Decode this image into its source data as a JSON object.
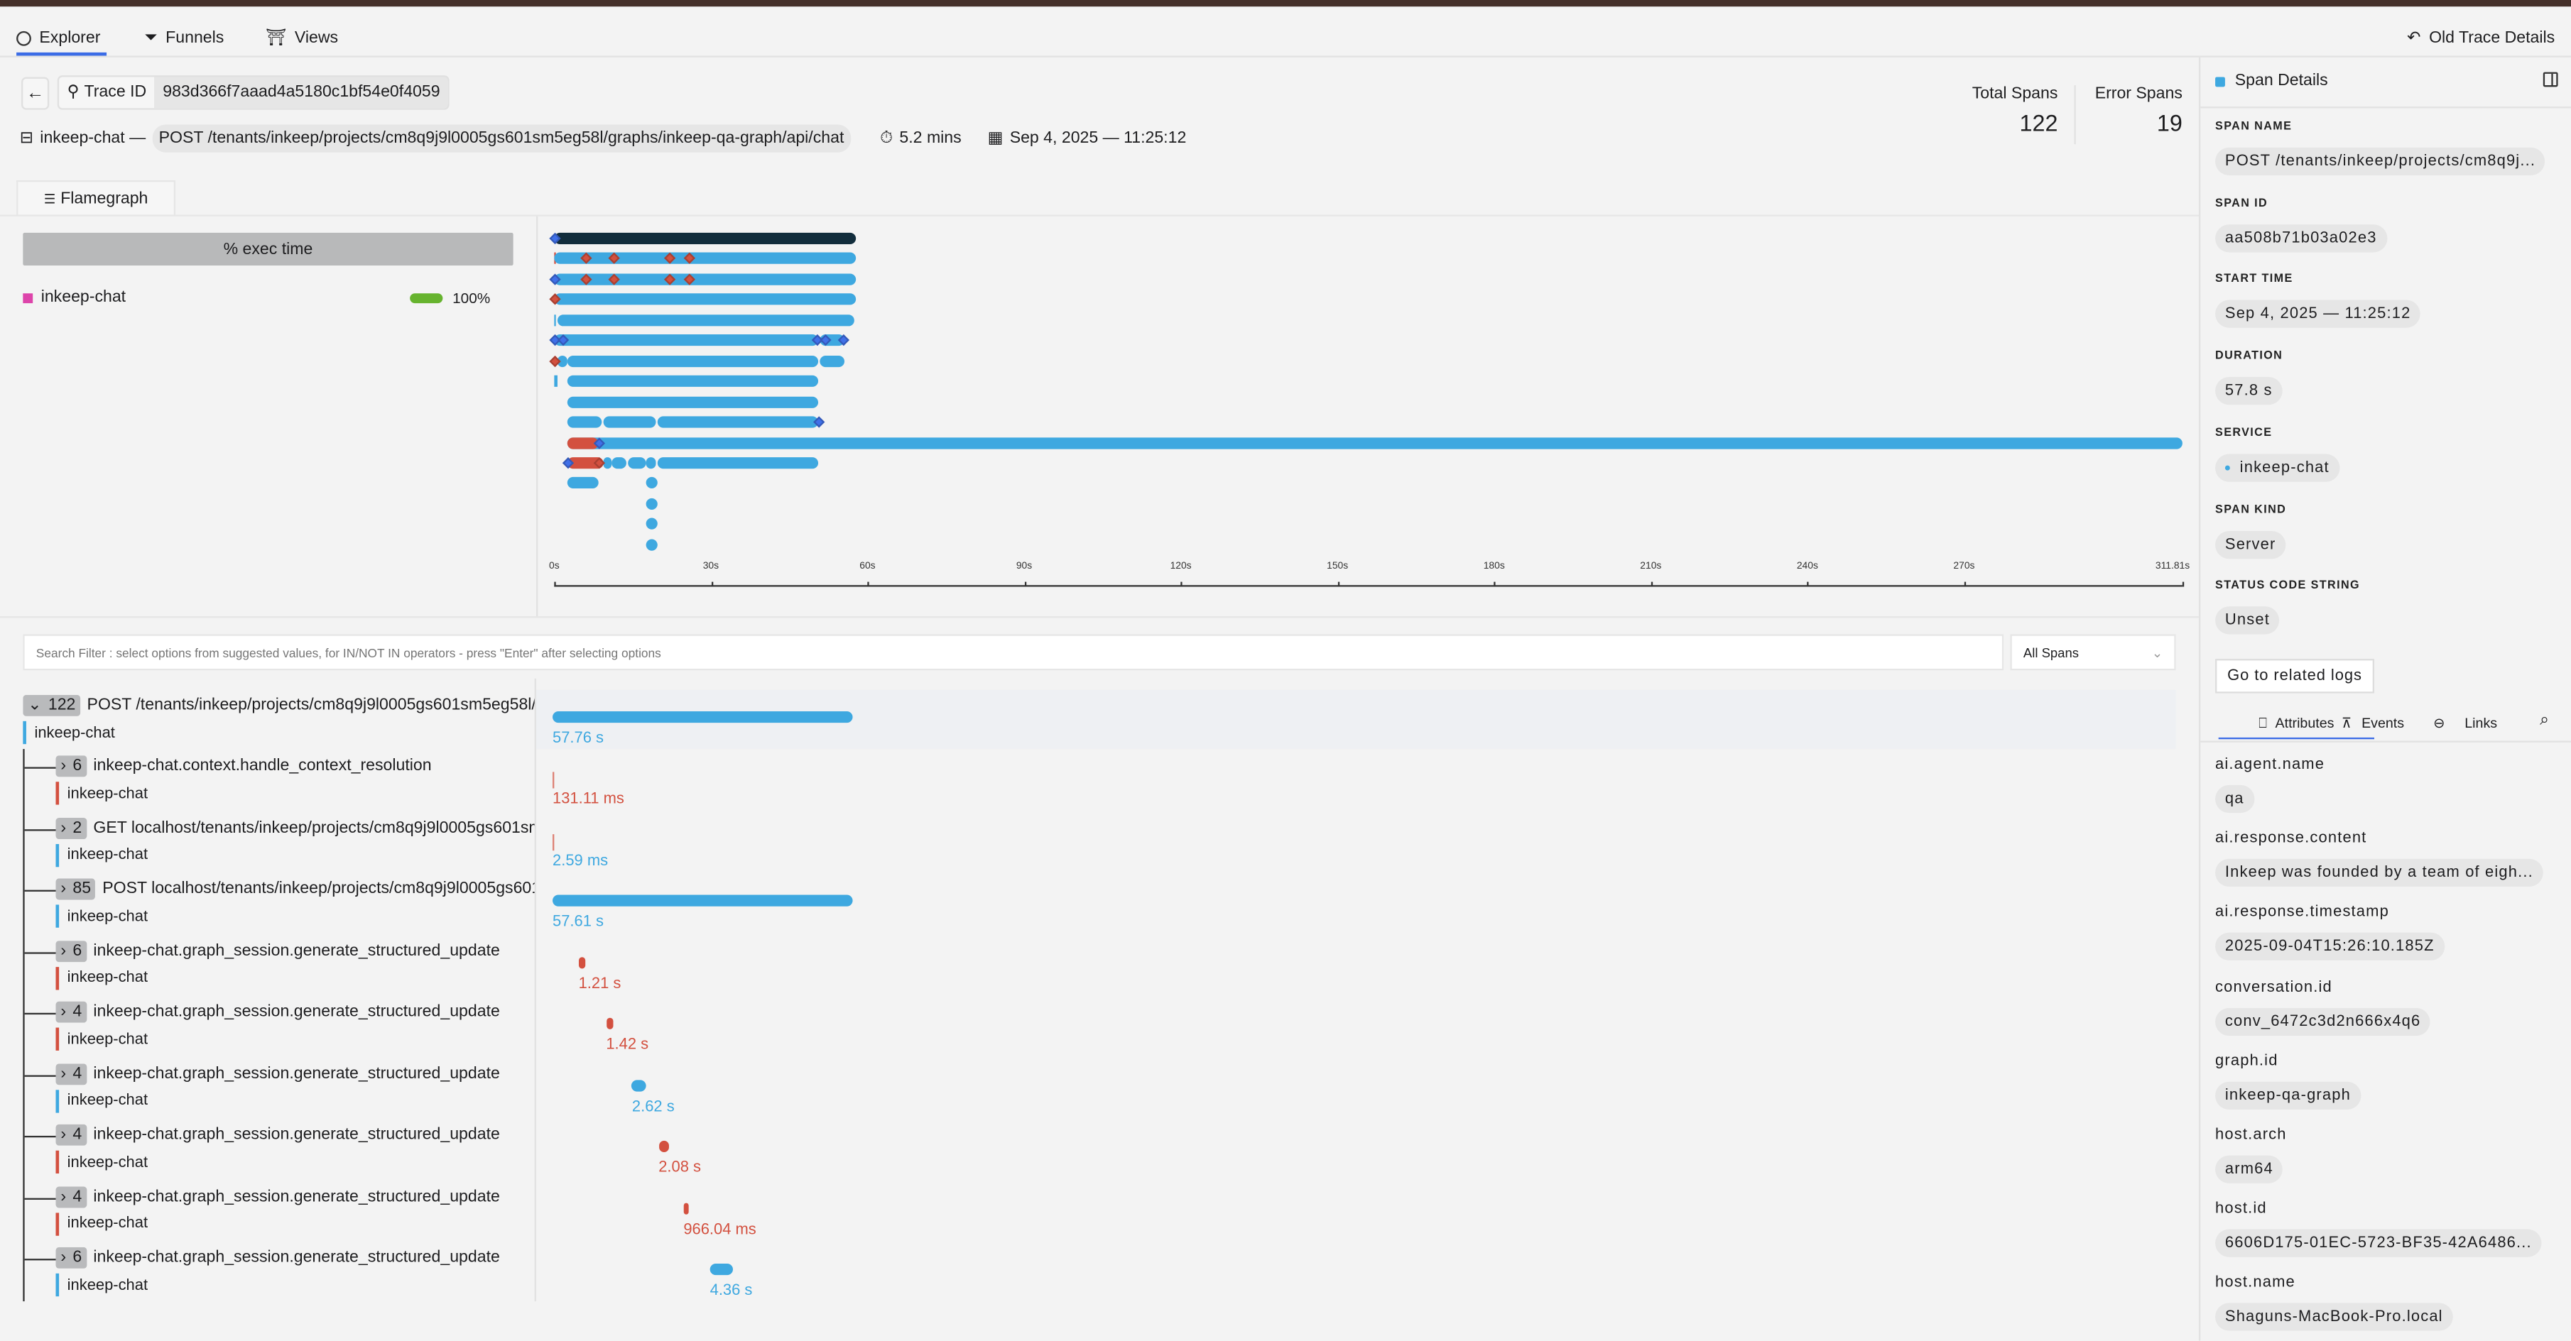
{
  "nav": {
    "tabs": [
      {
        "label": "Explorer",
        "icon": "compass-icon",
        "active": true
      },
      {
        "label": "Funnels",
        "icon": "funnel-icon"
      },
      {
        "label": "Views",
        "icon": "views-icon"
      }
    ],
    "old_trace_details": "Old Trace Details"
  },
  "trace": {
    "id_label": "Trace ID",
    "id": "983d366f7aaad4a5180c1bf54e0f4059",
    "service": "inkeep-chat —",
    "root_span": "POST /tenants/inkeep/projects/cm8q9j9l0005gs601sm5eg58l/graphs/inkeep-qa-graph/api/chat",
    "duration": "5.2 mins",
    "timestamp": "Sep 4, 2025 — 11:25:12"
  },
  "stats": {
    "total_label": "Total Spans",
    "total": "122",
    "error_label": "Error Spans",
    "errors": "19"
  },
  "flamegraph": {
    "tab": "Flamegraph",
    "exec_header": "% exec time",
    "legend": [
      {
        "service": "inkeep-chat",
        "color": "#dd44aa",
        "percent": 100,
        "percent_label": "100%"
      }
    ],
    "max_seconds": 311.81,
    "ticks": [
      "0s",
      "30s",
      "60s",
      "90s",
      "120s",
      "150s",
      "180s",
      "210s",
      "240s",
      "270s",
      "311.81s"
    ],
    "tick_values": [
      0,
      30,
      60,
      90,
      120,
      150,
      180,
      210,
      240,
      270,
      311.81
    ],
    "colors": {
      "normal": "#3ea8e0",
      "root": "#122d3c",
      "error": "#d3503f",
      "event": "#4070e8",
      "error_event": "#d3503f"
    },
    "rows": [
      {
        "bars": [
          {
            "s": 0,
            "e": 57.76,
            "k": "root"
          }
        ],
        "events": [
          {
            "t": 0,
            "k": "event"
          }
        ]
      },
      {
        "bars": [
          {
            "s": 0,
            "e": 0.05,
            "k": "error"
          },
          {
            "s": 0.1,
            "e": 57.7,
            "k": "normal"
          }
        ],
        "events": [
          {
            "t": 6.2,
            "k": "error_event"
          },
          {
            "t": 11.5,
            "k": "error_event"
          },
          {
            "t": 22.1,
            "k": "error_event"
          },
          {
            "t": 26.0,
            "k": "error_event"
          }
        ]
      },
      {
        "bars": [
          {
            "s": 0,
            "e": 57.7,
            "k": "normal"
          }
        ],
        "events": [
          {
            "t": 0,
            "k": "event"
          },
          {
            "t": 6.2,
            "k": "error_event"
          },
          {
            "t": 11.5,
            "k": "error_event"
          },
          {
            "t": 22.1,
            "k": "error_event"
          },
          {
            "t": 26.0,
            "k": "error_event"
          }
        ]
      },
      {
        "bars": [
          {
            "s": 0,
            "e": 57.7,
            "k": "normal"
          }
        ],
        "events": [
          {
            "t": 0,
            "k": "error_event"
          }
        ]
      },
      {
        "bars": [
          {
            "s": 0,
            "e": 0.3,
            "k": "normal"
          },
          {
            "s": 0.5,
            "e": 57.6,
            "k": "normal"
          }
        ],
        "events": []
      },
      {
        "bars": [
          {
            "s": 0,
            "e": 50.7,
            "k": "normal"
          },
          {
            "s": 51.0,
            "e": 55.5,
            "k": "normal"
          }
        ],
        "events": [
          {
            "t": 0.2,
            "k": "event"
          },
          {
            "t": 1.7,
            "k": "event"
          },
          {
            "t": 50.3,
            "k": "event"
          },
          {
            "t": 52.0,
            "k": "event"
          },
          {
            "t": 55.5,
            "k": "event"
          }
        ]
      },
      {
        "bars": [
          {
            "s": 0.7,
            "e": 2.6,
            "k": "normal"
          },
          {
            "s": 2.6,
            "e": 50.7,
            "k": "normal"
          },
          {
            "s": 50.9,
            "e": 55.5,
            "k": "normal"
          }
        ],
        "events": [
          {
            "t": 0.3,
            "k": "error_event"
          }
        ]
      },
      {
        "bars": [
          {
            "s": 0.1,
            "e": 0.5,
            "k": "normal"
          },
          {
            "s": 2.6,
            "e": 50.7,
            "k": "normal"
          }
        ],
        "events": []
      },
      {
        "bars": [
          {
            "s": 2.6,
            "e": 50.7,
            "k": "normal"
          }
        ],
        "events": []
      },
      {
        "bars": [
          {
            "s": 2.6,
            "e": 9.2,
            "k": "normal"
          },
          {
            "s": 9.3,
            "e": 19.5,
            "k": "normal"
          },
          {
            "s": 19.7,
            "e": 50.7,
            "k": "normal"
          }
        ],
        "events": [
          {
            "t": 50.7,
            "k": "event"
          }
        ]
      },
      {
        "bars": [
          {
            "s": 2.6,
            "e": 311.81,
            "k": "normal"
          },
          {
            "s": 2.6,
            "e": 8.6,
            "k": "error"
          }
        ],
        "events": [
          {
            "t": 8.5,
            "k": "event"
          }
        ]
      },
      {
        "bars": [
          {
            "s": 2.6,
            "e": 9.3,
            "k": "error"
          },
          {
            "s": 9.3,
            "e": 11.0,
            "k": "normal"
          },
          {
            "s": 11.1,
            "e": 13.9,
            "k": "normal"
          },
          {
            "s": 14.0,
            "e": 17.6,
            "k": "normal"
          },
          {
            "s": 17.7,
            "e": 19.6,
            "k": "normal"
          },
          {
            "s": 19.7,
            "e": 50.7,
            "k": "normal"
          }
        ],
        "events": [
          {
            "t": 2.6,
            "k": "event"
          },
          {
            "t": 8.5,
            "k": "error_event"
          }
        ]
      },
      {
        "bars": [
          {
            "s": 2.6,
            "e": 8.6,
            "k": "normal"
          },
          {
            "s": 17.7,
            "e": 19.8,
            "k": "normal"
          }
        ],
        "events": []
      },
      {
        "bars": [
          {
            "s": 17.7,
            "e": 19.8,
            "k": "normal"
          }
        ],
        "events": []
      },
      {
        "bars": [
          {
            "s": 17.7,
            "e": 19.8,
            "k": "normal"
          }
        ],
        "events": []
      },
      {
        "bars": [
          {
            "s": 17.7,
            "e": 19.8,
            "k": "normal"
          }
        ],
        "events": []
      }
    ]
  },
  "filter": {
    "placeholder": "Search Filter : select options from suggested values, for IN/NOT IN operators - press \"Enter\" after selecting options",
    "scope": "All Spans"
  },
  "spans": [
    {
      "count": "122",
      "name": "POST /tenants/inkeep/projects/cm8q9j9l0005gs601sm5eg58l/graphs/inkeep-qa-graph/api/chat",
      "service": "inkeep-chat",
      "duration": "57.76 s",
      "start_s": 0,
      "duration_s": 57.76,
      "status": "ok",
      "expanded": true,
      "root": true
    },
    {
      "count": "6",
      "name": "inkeep-chat.context.handle_context_resolution",
      "service": "inkeep-chat",
      "duration": "131.11 ms",
      "start_s": 0,
      "duration_s": 0.131,
      "status": "error"
    },
    {
      "count": "2",
      "name": "GET localhost/tenants/inkeep/projects/cm8q9j9l0005gs601sm5eg58l",
      "service": "inkeep-chat",
      "duration": "2.59 ms",
      "start_s": 0,
      "duration_s": 0.0026,
      "status": "ok"
    },
    {
      "count": "85",
      "name": "POST localhost/tenants/inkeep/projects/cm8q9j9l0005gs601sm5eg58l",
      "service": "inkeep-chat",
      "duration": "57.61 s",
      "start_s": 0,
      "duration_s": 57.61,
      "status": "ok"
    },
    {
      "count": "6",
      "name": "inkeep-chat.graph_session.generate_structured_update",
      "service": "inkeep-chat",
      "duration": "1.21 s",
      "start_s": 5.0,
      "duration_s": 1.21,
      "status": "error"
    },
    {
      "count": "4",
      "name": "inkeep-chat.graph_session.generate_structured_update",
      "service": "inkeep-chat",
      "duration": "1.42 s",
      "start_s": 10.3,
      "duration_s": 1.42,
      "status": "error"
    },
    {
      "count": "4",
      "name": "inkeep-chat.graph_session.generate_structured_update",
      "service": "inkeep-chat",
      "duration": "2.62 s",
      "start_s": 15.3,
      "duration_s": 2.62,
      "status": "ok"
    },
    {
      "count": "4",
      "name": "inkeep-chat.graph_session.generate_structured_update",
      "service": "inkeep-chat",
      "duration": "2.08 s",
      "start_s": 20.4,
      "duration_s": 2.08,
      "status": "error"
    },
    {
      "count": "4",
      "name": "inkeep-chat.graph_session.generate_structured_update",
      "service": "inkeep-chat",
      "duration": "966.04 ms",
      "start_s": 25.2,
      "duration_s": 0.966,
      "status": "error"
    },
    {
      "count": "6",
      "name": "inkeep-chat.graph_session.generate_structured_update",
      "service": "inkeep-chat",
      "duration": "4.36 s",
      "start_s": 30.3,
      "duration_s": 4.36,
      "status": "ok"
    }
  ],
  "details": {
    "title": "Span Details",
    "fields": [
      {
        "label": "SPAN NAME",
        "value": "POST /tenants/inkeep/projects/cm8q9j..."
      },
      {
        "label": "SPAN ID",
        "value": "aa508b71b03a02e3"
      },
      {
        "label": "START TIME",
        "value": "Sep 4, 2025 — 11:25:12"
      },
      {
        "label": "DURATION",
        "value": "57.8 s"
      },
      {
        "label": "SERVICE",
        "value": "inkeep-chat"
      },
      {
        "label": "SPAN KIND",
        "value": "Server"
      },
      {
        "label": "STATUS CODE STRING",
        "value": "Unset"
      }
    ],
    "logs_button": "Go to related logs",
    "tabs": [
      {
        "label": "Attributes",
        "icon": "bookmark-icon",
        "active": true
      },
      {
        "label": "Events",
        "icon": "anvil-icon"
      },
      {
        "label": "Links",
        "icon": "link-icon"
      }
    ],
    "attributes": [
      {
        "key": "ai.agent.name",
        "value": "qa"
      },
      {
        "key": "ai.response.content",
        "value": "Inkeep was founded by a team of eigh..."
      },
      {
        "key": "ai.response.timestamp",
        "value": "2025-09-04T15:26:10.185Z"
      },
      {
        "key": "conversation.id",
        "value": "conv_6472c3d2n666x4q6"
      },
      {
        "key": "graph.id",
        "value": "inkeep-qa-graph"
      },
      {
        "key": "host.arch",
        "value": "arm64"
      },
      {
        "key": "host.id",
        "value": "6606D175-01EC-5723-BF35-42A6486..."
      },
      {
        "key": "host.name",
        "value": "Shaguns-MacBook-Pro.local"
      }
    ]
  },
  "colors": {
    "accent": "#3b6ce6",
    "span_ok": "#3ea8e0",
    "span_error": "#d3503f",
    "exec_bar": "#66b32e"
  }
}
